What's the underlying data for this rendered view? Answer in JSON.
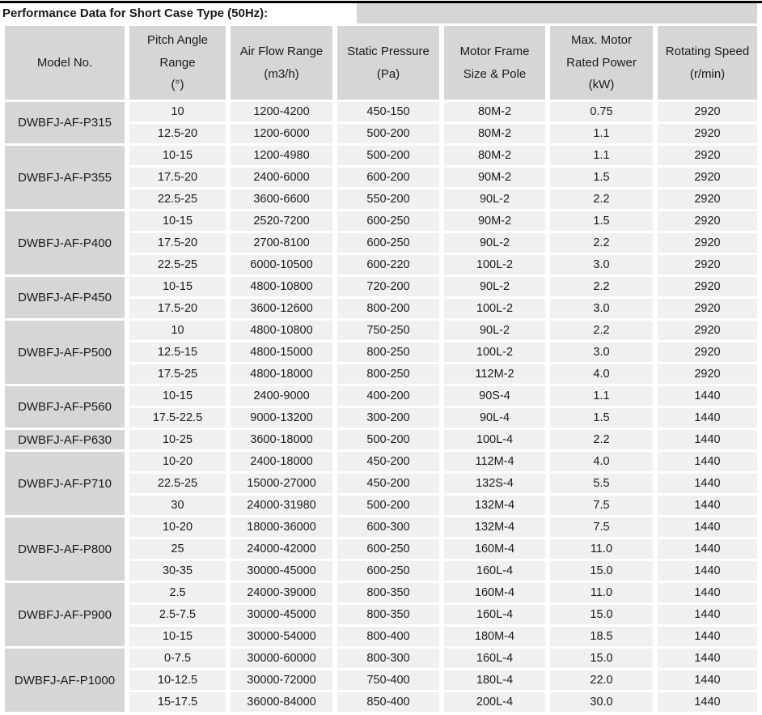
{
  "title": "Performance Data for Short Case Type (50Hz):",
  "colors": {
    "header_cell_bg": "#d6d6d6",
    "model_cell_bg": "#d6d6d6",
    "data_cell_bg": "#f0f0f0",
    "top_rule": "#000000",
    "text": "#1b1b1b",
    "page_bg": "#ffffff"
  },
  "table": {
    "columns": [
      {
        "id": "model",
        "label": "Model No."
      },
      {
        "id": "pitch-angle",
        "label": "Pitch Angle\nRange\n(°)"
      },
      {
        "id": "air-flow",
        "label": "Air Flow Range\n(m3/h)"
      },
      {
        "id": "static-pressure",
        "label": "Static Pressure\n(Pa)"
      },
      {
        "id": "motor-frame",
        "label": "Motor Frame\nSize & Pole"
      },
      {
        "id": "rated-power",
        "label": "Max. Motor\nRated Power\n(kW)"
      },
      {
        "id": "rotating-speed",
        "label": "Rotating Speed\n(r/min)"
      }
    ],
    "groups": [
      {
        "model": "DWBFJ-AF-P315",
        "rows": [
          [
            "10",
            "1200-4200",
            "450-150",
            "80M-2",
            "0.75",
            "2920"
          ],
          [
            "12.5-20",
            "1200-6000",
            "500-200",
            "80M-2",
            "1.1",
            "2920"
          ]
        ]
      },
      {
        "model": "DWBFJ-AF-P355",
        "rows": [
          [
            "10-15",
            "1200-4980",
            "500-200",
            "80M-2",
            "1.1",
            "2920"
          ],
          [
            "17.5-20",
            "2400-6000",
            "600-200",
            "90M-2",
            "1.5",
            "2920"
          ],
          [
            "22.5-25",
            "3600-6600",
            "550-200",
            "90L-2",
            "2.2",
            "2920"
          ]
        ]
      },
      {
        "model": "DWBFJ-AF-P400",
        "rows": [
          [
            "10-15",
            "2520-7200",
            "600-250",
            "90M-2",
            "1.5",
            "2920"
          ],
          [
            "17.5-20",
            "2700-8100",
            "600-250",
            "90L-2",
            "2.2",
            "2920"
          ],
          [
            "22.5-25",
            "6000-10500",
            "600-220",
            "100L-2",
            "3.0",
            "2920"
          ]
        ]
      },
      {
        "model": "DWBFJ-AF-P450",
        "rows": [
          [
            "10-15",
            "4800-10800",
            "720-200",
            "90L-2",
            "2.2",
            "2920"
          ],
          [
            "17.5-20",
            "3600-12600",
            "800-200",
            "100L-2",
            "3.0",
            "2920"
          ]
        ]
      },
      {
        "model": "DWBFJ-AF-P500",
        "rows": [
          [
            "10",
            "4800-10800",
            "750-250",
            "90L-2",
            "2.2",
            "2920"
          ],
          [
            "12.5-15",
            "4800-15000",
            "800-250",
            "100L-2",
            "3.0",
            "2920"
          ],
          [
            "17.5-25",
            "4800-18000",
            "800-250",
            "112M-2",
            "4.0",
            "2920"
          ]
        ]
      },
      {
        "model": "DWBFJ-AF-P560",
        "rows": [
          [
            "10-15",
            "2400-9000",
            "400-200",
            "90S-4",
            "1.1",
            "1440"
          ],
          [
            "17.5-22.5",
            "9000-13200",
            "300-200",
            "90L-4",
            "1.5",
            "1440"
          ]
        ]
      },
      {
        "model": "DWBFJ-AF-P630",
        "rows": [
          [
            "10-25",
            "3600-18000",
            "500-200",
            "100L-4",
            "2.2",
            "1440"
          ]
        ]
      },
      {
        "model": "DWBFJ-AF-P710",
        "rows": [
          [
            "10-20",
            "2400-18000",
            "450-200",
            "112M-4",
            "4.0",
            "1440"
          ],
          [
            "22.5-25",
            "15000-27000",
            "450-200",
            "132S-4",
            "5.5",
            "1440"
          ],
          [
            "30",
            "24000-31980",
            "500-200",
            "132M-4",
            "7.5",
            "1440"
          ]
        ]
      },
      {
        "model": "DWBFJ-AF-P800",
        "rows": [
          [
            "10-20",
            "18000-36000",
            "600-300",
            "132M-4",
            "7.5",
            "1440"
          ],
          [
            "25",
            "24000-42000",
            "600-250",
            "160M-4",
            "11.0",
            "1440"
          ],
          [
            "30-35",
            "30000-45000",
            "600-250",
            "160L-4",
            "15.0",
            "1440"
          ]
        ]
      },
      {
        "model": "DWBFJ-AF-P900",
        "rows": [
          [
            "2.5",
            "24000-39000",
            "800-350",
            "160M-4",
            "11.0",
            "1440"
          ],
          [
            "2.5-7.5",
            "30000-45000",
            "800-350",
            "160L-4",
            "15.0",
            "1440"
          ],
          [
            "10-15",
            "30000-54000",
            "800-400",
            "180M-4",
            "18.5",
            "1440"
          ]
        ]
      },
      {
        "model": "DWBFJ-AF-P1000",
        "rows": [
          [
            "0-7.5",
            "30000-60000",
            "800-300",
            "160L-4",
            "15.0",
            "1440"
          ],
          [
            "10-12.5",
            "30000-72000",
            "750-400",
            "180L-4",
            "22.0",
            "1440"
          ],
          [
            "15-17.5",
            "36000-84000",
            "850-400",
            "200L-4",
            "30.0",
            "1440"
          ]
        ]
      }
    ]
  }
}
